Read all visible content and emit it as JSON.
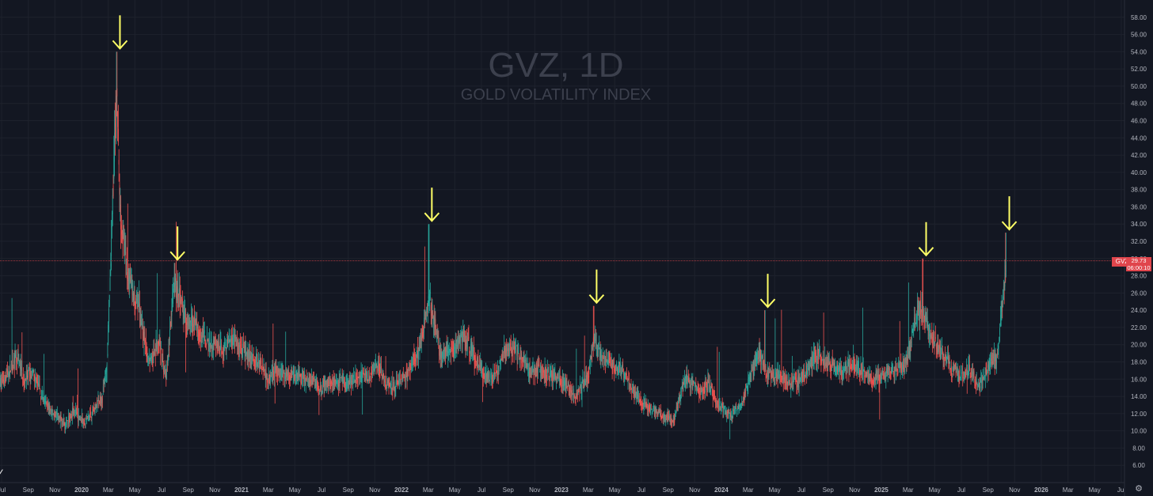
{
  "watermark": {
    "title": "GVZ, 1D",
    "subtitle": "GOLD VOLATILITY INDEX"
  },
  "price_tag": {
    "symbol": "GVZ",
    "value": "29.73",
    "countdown": "06:00:10"
  },
  "colors": {
    "background": "#131722",
    "grid": "#1e222d",
    "up": "#26a69a",
    "down": "#ef5350",
    "arrow": "#ffff66",
    "price_line": "#e0454c",
    "axis_text": "#b2b5be"
  },
  "chart_data": {
    "type": "candlestick",
    "title": "",
    "xlabel": "",
    "ylabel": "",
    "ylim": [
      4,
      60
    ],
    "y_ticks": [
      "6.00",
      "8.00",
      "10.00",
      "12.00",
      "14.00",
      "16.00",
      "18.00",
      "20.00",
      "22.00",
      "24.00",
      "26.00",
      "28.00",
      "30.00",
      "32.00",
      "34.00",
      "36.00",
      "38.00",
      "40.00",
      "42.00",
      "44.00",
      "46.00",
      "48.00",
      "50.00",
      "52.00",
      "54.00",
      "56.00",
      "58.00"
    ],
    "x_ticks": [
      {
        "label": "Jul",
        "t": 2019.5
      },
      {
        "label": "Sep",
        "t": 2019.667
      },
      {
        "label": "Nov",
        "t": 2019.833
      },
      {
        "label": "2020",
        "t": 2020.0,
        "bold": true
      },
      {
        "label": "Mar",
        "t": 2020.167
      },
      {
        "label": "May",
        "t": 2020.333
      },
      {
        "label": "Jul",
        "t": 2020.5
      },
      {
        "label": "Sep",
        "t": 2020.667
      },
      {
        "label": "Nov",
        "t": 2020.833
      },
      {
        "label": "2021",
        "t": 2021.0,
        "bold": true
      },
      {
        "label": "Mar",
        "t": 2021.167
      },
      {
        "label": "May",
        "t": 2021.333
      },
      {
        "label": "Jul",
        "t": 2021.5
      },
      {
        "label": "Sep",
        "t": 2021.667
      },
      {
        "label": "Nov",
        "t": 2021.833
      },
      {
        "label": "2022",
        "t": 2022.0,
        "bold": true
      },
      {
        "label": "Mar",
        "t": 2022.167
      },
      {
        "label": "May",
        "t": 2022.333
      },
      {
        "label": "Jul",
        "t": 2022.5
      },
      {
        "label": "Sep",
        "t": 2022.667
      },
      {
        "label": "Nov",
        "t": 2022.833
      },
      {
        "label": "2023",
        "t": 2023.0,
        "bold": true
      },
      {
        "label": "Mar",
        "t": 2023.167
      },
      {
        "label": "May",
        "t": 2023.333
      },
      {
        "label": "Jul",
        "t": 2023.5
      },
      {
        "label": "Sep",
        "t": 2023.667
      },
      {
        "label": "Nov",
        "t": 2023.833
      },
      {
        "label": "2024",
        "t": 2024.0,
        "bold": true
      },
      {
        "label": "Mar",
        "t": 2024.167
      },
      {
        "label": "May",
        "t": 2024.333
      },
      {
        "label": "Jul",
        "t": 2024.5
      },
      {
        "label": "Sep",
        "t": 2024.667
      },
      {
        "label": "Nov",
        "t": 2024.833
      },
      {
        "label": "2025",
        "t": 2025.0,
        "bold": true
      },
      {
        "label": "Mar",
        "t": 2025.167
      },
      {
        "label": "May",
        "t": 2025.333
      },
      {
        "label": "Jul",
        "t": 2025.5
      },
      {
        "label": "Sep",
        "t": 2025.667
      },
      {
        "label": "Nov",
        "t": 2025.833
      },
      {
        "label": "2026",
        "t": 2026.0,
        "bold": true
      },
      {
        "label": "Mar",
        "t": 2026.167
      },
      {
        "label": "May",
        "t": 2026.333
      },
      {
        "label": "Jul",
        "t": 2026.5
      }
    ],
    "x_range": [
      2019.49,
      2026.52
    ],
    "series": [
      {
        "name": "GVZ",
        "path": [
          [
            2019.49,
            15.5
          ],
          [
            2019.55,
            17
          ],
          [
            2019.6,
            18.5
          ],
          [
            2019.64,
            16
          ],
          [
            2019.7,
            16.5
          ],
          [
            2019.75,
            14
          ],
          [
            2019.8,
            12.5
          ],
          [
            2019.86,
            11.5
          ],
          [
            2019.9,
            10.5
          ],
          [
            2019.95,
            12.5
          ],
          [
            2019.98,
            11.5
          ],
          [
            2020.02,
            11.2
          ],
          [
            2020.08,
            12.5
          ],
          [
            2020.13,
            14
          ],
          [
            2020.16,
            18
          ],
          [
            2020.18,
            28
          ],
          [
            2020.2,
            40
          ],
          [
            2020.22,
            50
          ],
          [
            2020.24,
            36
          ],
          [
            2020.28,
            29
          ],
          [
            2020.32,
            26
          ],
          [
            2020.36,
            24
          ],
          [
            2020.4,
            19.5
          ],
          [
            2020.44,
            18
          ],
          [
            2020.48,
            20.5
          ],
          [
            2020.53,
            16
          ],
          [
            2020.56,
            23
          ],
          [
            2020.58,
            27
          ],
          [
            2020.61,
            25.5
          ],
          [
            2020.65,
            23
          ],
          [
            2020.7,
            22.5
          ],
          [
            2020.75,
            21
          ],
          [
            2020.82,
            20
          ],
          [
            2020.88,
            19.5
          ],
          [
            2020.95,
            21
          ],
          [
            2021.0,
            19.5
          ],
          [
            2021.05,
            18.5
          ],
          [
            2021.12,
            18
          ],
          [
            2021.17,
            16
          ],
          [
            2021.22,
            17
          ],
          [
            2021.28,
            16.5
          ],
          [
            2021.35,
            16.5
          ],
          [
            2021.42,
            15.8
          ],
          [
            2021.5,
            15.2
          ],
          [
            2021.58,
            15.8
          ],
          [
            2021.65,
            15.5
          ],
          [
            2021.72,
            16
          ],
          [
            2021.8,
            16.5
          ],
          [
            2021.86,
            17.5
          ],
          [
            2021.9,
            15.5
          ],
          [
            2021.95,
            15
          ],
          [
            2022.0,
            16
          ],
          [
            2022.05,
            17
          ],
          [
            2022.1,
            19
          ],
          [
            2022.14,
            22
          ],
          [
            2022.17,
            26
          ],
          [
            2022.2,
            23
          ],
          [
            2022.24,
            19
          ],
          [
            2022.28,
            19
          ],
          [
            2022.33,
            19.5
          ],
          [
            2022.38,
            21
          ],
          [
            2022.42,
            20
          ],
          [
            2022.47,
            18
          ],
          [
            2022.52,
            16.5
          ],
          [
            2022.56,
            16
          ],
          [
            2022.6,
            17
          ],
          [
            2022.65,
            19.5
          ],
          [
            2022.7,
            19.5
          ],
          [
            2022.75,
            18.5
          ],
          [
            2022.8,
            17
          ],
          [
            2022.86,
            17
          ],
          [
            2022.92,
            16.5
          ],
          [
            2022.98,
            16
          ],
          [
            2023.04,
            15
          ],
          [
            2023.09,
            14
          ],
          [
            2023.13,
            15.5
          ],
          [
            2023.17,
            16.5
          ],
          [
            2023.2,
            21
          ],
          [
            2023.24,
            19
          ],
          [
            2023.28,
            18
          ],
          [
            2023.33,
            17.5
          ],
          [
            2023.38,
            17
          ],
          [
            2023.44,
            15
          ],
          [
            2023.5,
            13.5
          ],
          [
            2023.56,
            12.5
          ],
          [
            2023.62,
            12
          ],
          [
            2023.66,
            11.5
          ],
          [
            2023.7,
            11
          ],
          [
            2023.74,
            14
          ],
          [
            2023.78,
            16
          ],
          [
            2023.82,
            15.5
          ],
          [
            2023.86,
            14.5
          ],
          [
            2023.92,
            15.5
          ],
          [
            2023.98,
            13
          ],
          [
            2024.04,
            12
          ],
          [
            2024.08,
            12
          ],
          [
            2024.12,
            13
          ],
          [
            2024.16,
            15
          ],
          [
            2024.2,
            17.5
          ],
          [
            2024.24,
            19
          ],
          [
            2024.28,
            17
          ],
          [
            2024.33,
            16.5
          ],
          [
            2024.38,
            16
          ],
          [
            2024.44,
            15.5
          ],
          [
            2024.5,
            16
          ],
          [
            2024.55,
            17.5
          ],
          [
            2024.6,
            19
          ],
          [
            2024.65,
            18
          ],
          [
            2024.7,
            17.5
          ],
          [
            2024.76,
            17
          ],
          [
            2024.82,
            18
          ],
          [
            2024.88,
            17
          ],
          [
            2024.94,
            16
          ],
          [
            2025.0,
            16.5
          ],
          [
            2025.05,
            16.8
          ],
          [
            2025.1,
            17
          ],
          [
            2025.14,
            17.5
          ],
          [
            2025.18,
            19.5
          ],
          [
            2025.22,
            24
          ],
          [
            2025.26,
            24
          ],
          [
            2025.3,
            21.5
          ],
          [
            2025.35,
            20
          ],
          [
            2025.4,
            18.5
          ],
          [
            2025.45,
            17
          ],
          [
            2025.5,
            16.5
          ],
          [
            2025.55,
            17
          ],
          [
            2025.6,
            15.5
          ],
          [
            2025.64,
            16
          ],
          [
            2025.68,
            18
          ],
          [
            2025.72,
            18.5
          ],
          [
            2025.74,
            21
          ],
          [
            2025.76,
            25
          ],
          [
            2025.78,
            29.73
          ]
        ]
      }
    ],
    "highlighted_peaks": [
      {
        "t": 2020.22,
        "high": 54.0
      },
      {
        "t": 2020.58,
        "high": 29.5
      },
      {
        "t": 2022.17,
        "high": 34.0
      },
      {
        "t": 2023.2,
        "high": 24.5
      },
      {
        "t": 2024.27,
        "high": 24.0
      },
      {
        "t": 2025.26,
        "high": 30.0
      },
      {
        "t": 2025.78,
        "high": 33.0
      }
    ],
    "current_value": 29.73
  }
}
